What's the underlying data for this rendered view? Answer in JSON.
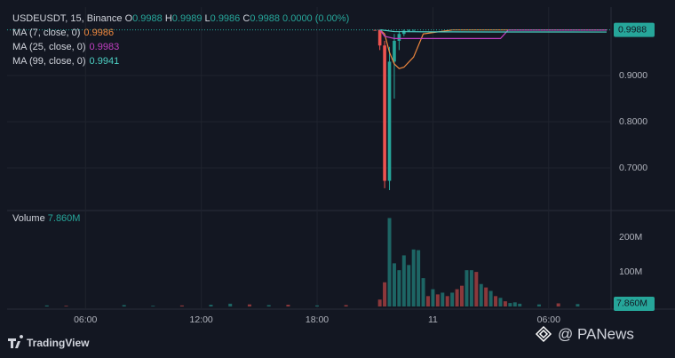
{
  "chart_data": [
    {
      "type": "candlestick",
      "header": {
        "symbol": "USDEUSDT, 15, Binance",
        "open_label": "O",
        "open": 0.9988,
        "high_label": "H",
        "high": 0.9989,
        "low_label": "L",
        "low": 0.9986,
        "close_label": "C",
        "close": 0.9988,
        "change": "0.0000 (0.00%)"
      },
      "x": [
        21.0,
        21.25,
        21.5,
        21.75,
        22.0,
        22.25,
        22.5,
        22.75,
        23.0
      ],
      "open": [
        0.9988,
        0.9987,
        0.965,
        0.672,
        0.93,
        0.975,
        0.99,
        0.997,
        0.9986
      ],
      "high": [
        0.999,
        0.999,
        0.975,
        0.962,
        0.99,
        0.995,
        0.9995,
        0.9995,
        0.999
      ],
      "low": [
        0.9985,
        0.955,
        0.656,
        0.652,
        0.85,
        0.955,
        0.985,
        0.995,
        0.9984
      ],
      "close": [
        0.9987,
        0.965,
        0.672,
        0.93,
        0.975,
        0.99,
        0.997,
        0.9986,
        0.9988
      ],
      "up_color": "#26a69a",
      "down_color": "#ef5350",
      "moving_averages": [
        {
          "name": "MA (7, close, 0)",
          "value": 0.9986,
          "color": "#f0883e",
          "x": [
            21.25,
            21.5,
            21.75,
            22.0,
            22.25,
            22.5,
            23.0,
            23.5,
            25.0,
            33.0
          ],
          "values": [
            0.999,
            0.99,
            0.95,
            0.925,
            0.915,
            0.918,
            0.94,
            0.99,
            0.9986,
            0.9986
          ]
        },
        {
          "name": "MA (25, close, 0)",
          "value": 0.9983,
          "color": "#c23fc2",
          "x": [
            21.25,
            21.5,
            22.0,
            24.0,
            27.5,
            27.9,
            33.0
          ],
          "values": [
            0.999,
            0.985,
            0.98,
            0.98,
            0.98,
            0.9983,
            0.9983
          ]
        },
        {
          "name": "MA (99, close, 0)",
          "value": 0.9941,
          "color": "#4dd0c4",
          "x": [
            21.25,
            22.0,
            24.0,
            27.0,
            33.0
          ],
          "values": [
            0.999,
            0.995,
            0.9945,
            0.9942,
            0.9941
          ]
        }
      ],
      "last_price": 0.9988,
      "xlim": [
        1.94,
        33.23
      ],
      "ylim": [
        0.6115,
        1.0442
      ],
      "yticks": [
        {
          "value": 0.7,
          "label": "0.7000"
        },
        {
          "value": 0.8,
          "label": "0.8000"
        },
        {
          "value": 0.9,
          "label": "0.9000"
        }
      ],
      "xticks": [
        {
          "value": 6,
          "label": "06:00"
        },
        {
          "value": 12,
          "label": "12:00"
        },
        {
          "value": 18,
          "label": "18:00"
        },
        {
          "value": 24,
          "label": "11"
        },
        {
          "value": 30,
          "label": "06:00"
        }
      ],
      "grid": true
    },
    {
      "type": "bar",
      "title": "Volume",
      "last_value": {
        "value": 7.86,
        "label": "7.860M"
      },
      "x": [
        4,
        5,
        8,
        9.5,
        11,
        12.5,
        13.5,
        14.5,
        15.5,
        16.5,
        18,
        19.5,
        21.25,
        21.5,
        21.75,
        22.0,
        22.25,
        22.5,
        22.75,
        23.0,
        23.25,
        23.5,
        23.75,
        24.0,
        24.25,
        24.5,
        24.75,
        25.0,
        25.25,
        25.5,
        25.75,
        26.0,
        26.25,
        26.5,
        26.75,
        27.0,
        27.25,
        27.5,
        27.75,
        28.0,
        28.25,
        28.5,
        29.5,
        30.5,
        31.5
      ],
      "values": [
        3,
        2,
        4,
        2,
        3,
        5,
        8,
        6,
        4,
        5,
        3,
        4,
        20,
        70,
        256,
        125,
        105,
        148,
        120,
        165,
        163,
        82,
        30,
        50,
        35,
        40,
        30,
        40,
        50,
        60,
        105,
        105,
        100,
        65,
        55,
        45,
        30,
        25,
        15,
        10,
        12,
        8,
        6,
        9,
        7
      ],
      "colors": [
        "#26a69a",
        "#ef5350",
        "#26a69a",
        "#26a69a",
        "#ef5350",
        "#26a69a",
        "#26a69a",
        "#ef5350",
        "#26a69a",
        "#ef5350",
        "#26a69a",
        "#ef5350",
        "#ef5350",
        "#ef5350",
        "#26a69a",
        "#26a69a",
        "#26a69a",
        "#26a69a",
        "#26a69a",
        "#26a69a",
        "#26a69a",
        "#26a69a",
        "#ef5350",
        "#26a69a",
        "#ef5350",
        "#26a69a",
        "#ef5350",
        "#26a69a",
        "#ef5350",
        "#ef5350",
        "#26a69a",
        "#26a69a",
        "#ef5350",
        "#26a69a",
        "#ef5350",
        "#26a69a",
        "#ef5350",
        "#26a69a",
        "#ef5350",
        "#26a69a",
        "#26a69a",
        "#26a69a",
        "#26a69a",
        "#ef5350",
        "#26a69a"
      ],
      "xlim": [
        1.94,
        33.23
      ],
      "ylim": [
        0,
        270
      ],
      "yticks": [
        {
          "value": 100,
          "label": "100M"
        },
        {
          "value": 200,
          "label": "200M"
        }
      ]
    }
  ],
  "branding": {
    "platform": "TradingView",
    "watermark": "@ PANews"
  }
}
